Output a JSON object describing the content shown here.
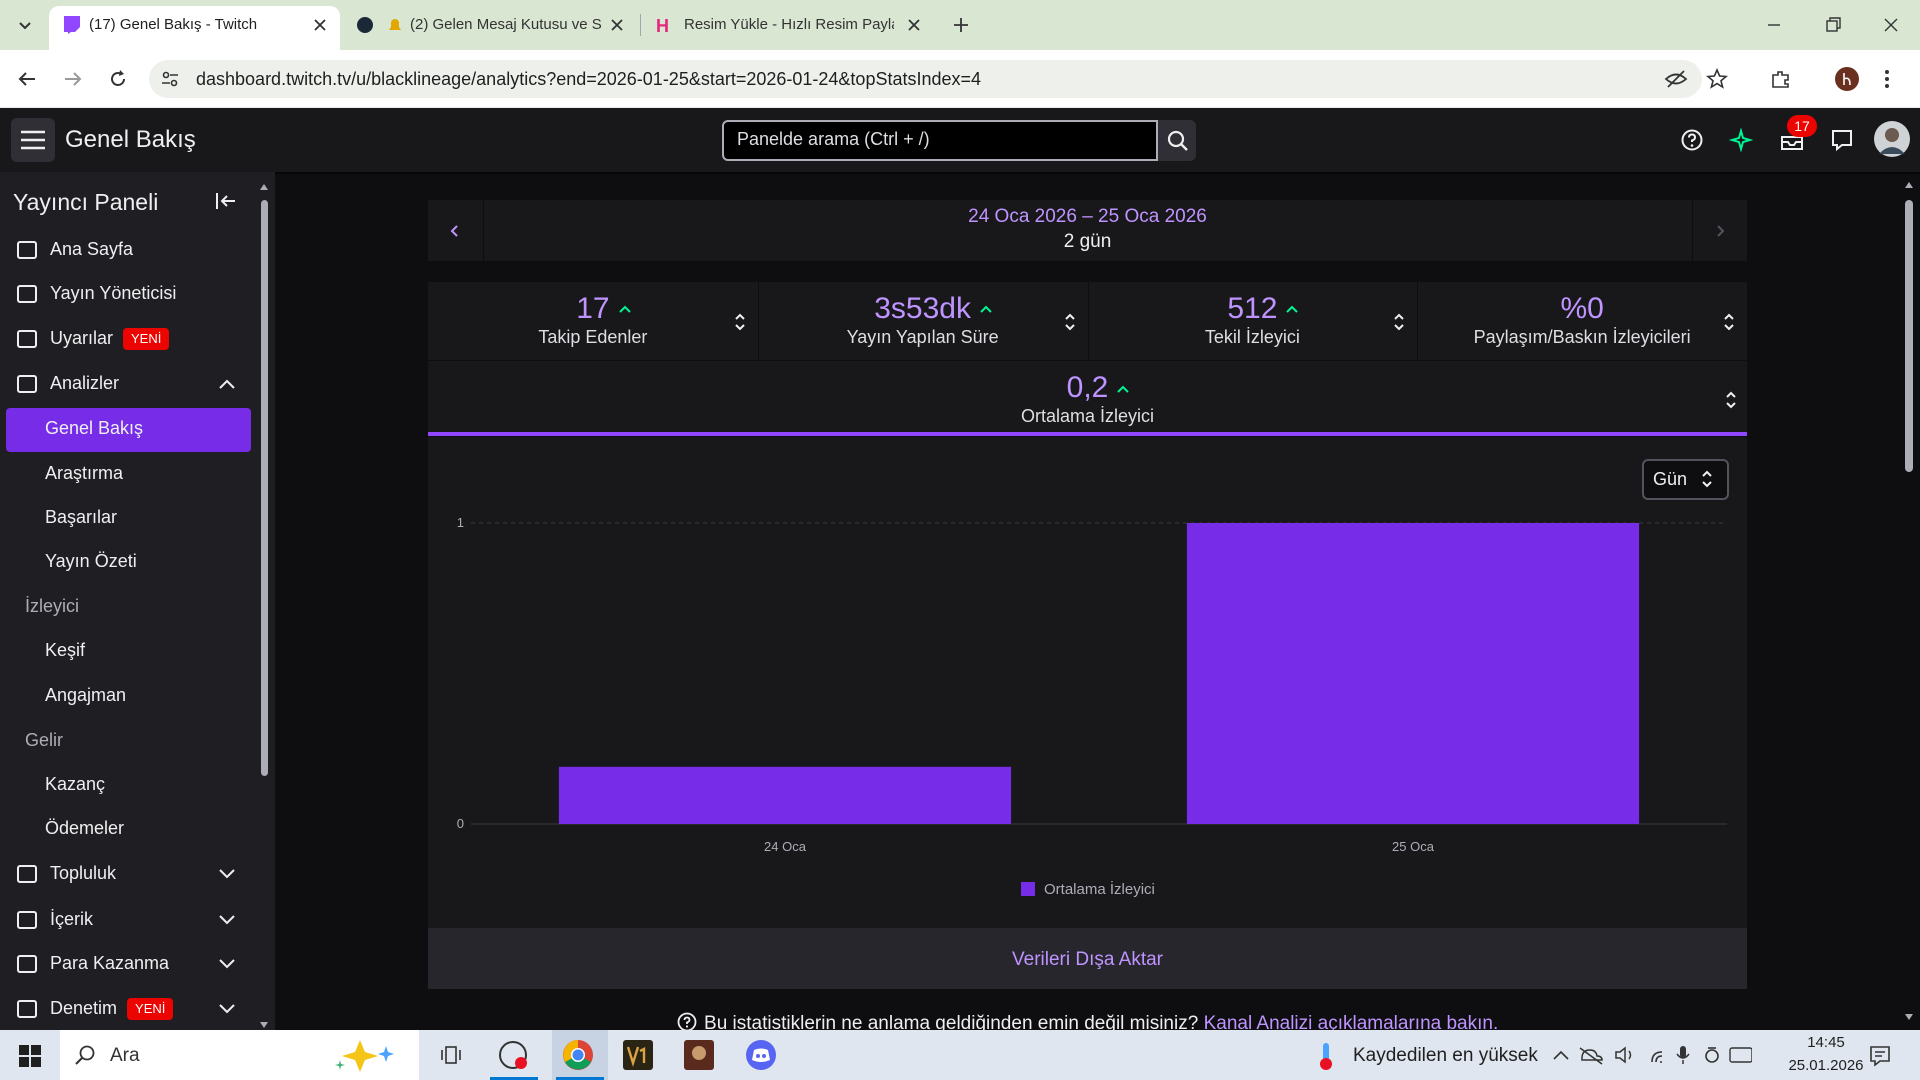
{
  "browser": {
    "tabs": [
      "(17) Genel Bakış - Twitch",
      "(2) Gelen Mesaj Kutusu ve S",
      "Resim Yükle - Hızlı Resim Paylaş"
    ],
    "url": "dashboard.twitch.tv/u/blacklineage/analytics?end=2026-01-25&start=2026-01-24&topStatsIndex=4"
  },
  "header": {
    "title": "Genel Bakış",
    "search_placeholder": "Panelde arama (Ctrl + /)",
    "notification_count": "17"
  },
  "sidebar": {
    "title": "Yayıncı Paneli",
    "items": [
      {
        "label": "Ana Sayfa"
      },
      {
        "label": "Yayın Yöneticisi"
      },
      {
        "label": "Uyarılar",
        "badge": "YENİ"
      },
      {
        "label": "Analizler"
      },
      {
        "label": "Genel Bakış"
      },
      {
        "label": "Araştırma"
      },
      {
        "label": "Başarılar"
      },
      {
        "label": "Yayın Özeti"
      },
      {
        "label": "İzleyici"
      },
      {
        "label": "Keşif"
      },
      {
        "label": "Angajman"
      },
      {
        "label": "Gelir"
      },
      {
        "label": "Kazanç"
      },
      {
        "label": "Ödemeler"
      },
      {
        "label": "Topluluk"
      },
      {
        "label": "İçerik"
      },
      {
        "label": "Para Kazanma"
      },
      {
        "label": "Denetim",
        "badge": "YENİ"
      }
    ]
  },
  "date_range": {
    "range": "24 Oca 2026 – 25 Oca 2026",
    "length": "2 gün"
  },
  "stats": [
    {
      "value": "17",
      "label": "Takip Edenler"
    },
    {
      "value": "3s53dk",
      "label": "Yayın Yapılan Süre"
    },
    {
      "value": "512",
      "label": "Tekil İzleyici"
    },
    {
      "value": "%0",
      "label": "Paylaşım/Baskın İzleyicileri"
    }
  ],
  "selected_stat": {
    "value": "0,2",
    "label": "Ortalama İzleyici"
  },
  "interval": "Gün",
  "chart_data": {
    "type": "bar",
    "categories": [
      "24 Oca",
      "25 Oca"
    ],
    "series": [
      {
        "name": "Ortalama İzleyici",
        "color": "#772ce8",
        "values": [
          0.19,
          1
        ]
      }
    ],
    "ylim": [
      0,
      1
    ],
    "yticks": [
      0,
      1
    ],
    "grid": true
  },
  "export": "Verileri Dışa Aktar",
  "help": {
    "text": "Bu istatistiklerin ne anlama geldiğinden emin değil misiniz?",
    "link": "Kanal Analizi açıklamalarına bakın."
  },
  "taskbar": {
    "search": "Ara",
    "weather": "Kaydedilen en yüksek",
    "time": "14:45",
    "date": "25.01.2026"
  }
}
